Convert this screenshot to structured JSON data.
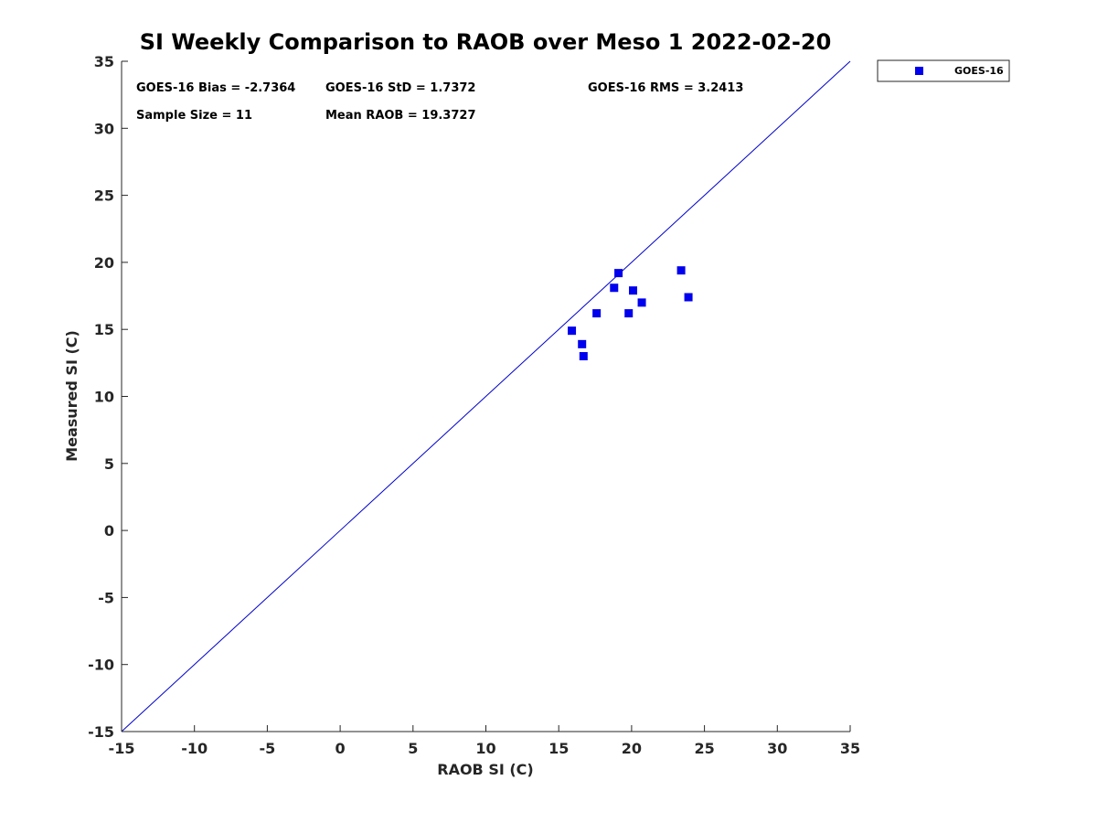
{
  "chart_data": {
    "type": "scatter",
    "title": "SI Weekly Comparison to RAOB over Meso 1 2022-02-20",
    "xlabel": "RAOB SI (C)",
    "ylabel": "Measured SI (C)",
    "xlim": [
      -15,
      35
    ],
    "ylim": [
      -15,
      35
    ],
    "xticks": [
      "-15",
      "-10",
      "-5",
      "0",
      "5",
      "10",
      "15",
      "20",
      "25",
      "30",
      "35"
    ],
    "yticks": [
      "-15",
      "-10",
      "-5",
      "0",
      "5",
      "10",
      "15",
      "20",
      "25",
      "30",
      "35"
    ],
    "reference_line": {
      "from": [
        -15,
        -15
      ],
      "to": [
        35,
        35
      ],
      "color": "#0000cc"
    },
    "series": [
      {
        "name": "GOES-16",
        "color": "#0000ee",
        "marker": "square",
        "points": [
          [
            15.9,
            14.9
          ],
          [
            16.6,
            13.9
          ],
          [
            16.7,
            13.0
          ],
          [
            17.6,
            16.2
          ],
          [
            18.8,
            18.1
          ],
          [
            19.1,
            19.2
          ],
          [
            19.8,
            16.2
          ],
          [
            20.1,
            17.9
          ],
          [
            20.7,
            17.0
          ],
          [
            23.4,
            19.4
          ],
          [
            23.9,
            17.4
          ]
        ]
      }
    ],
    "stats": {
      "bias": "GOES-16 Bias = -2.7364",
      "std": "GOES-16 StD = 1.7372",
      "rms": "GOES-16 RMS = 3.2413",
      "sample_size": "Sample Size = 11",
      "mean_raob": "Mean RAOB = 19.3727"
    },
    "legend": {
      "position": "outside-top-right",
      "entries": [
        "GOES-16"
      ]
    }
  }
}
